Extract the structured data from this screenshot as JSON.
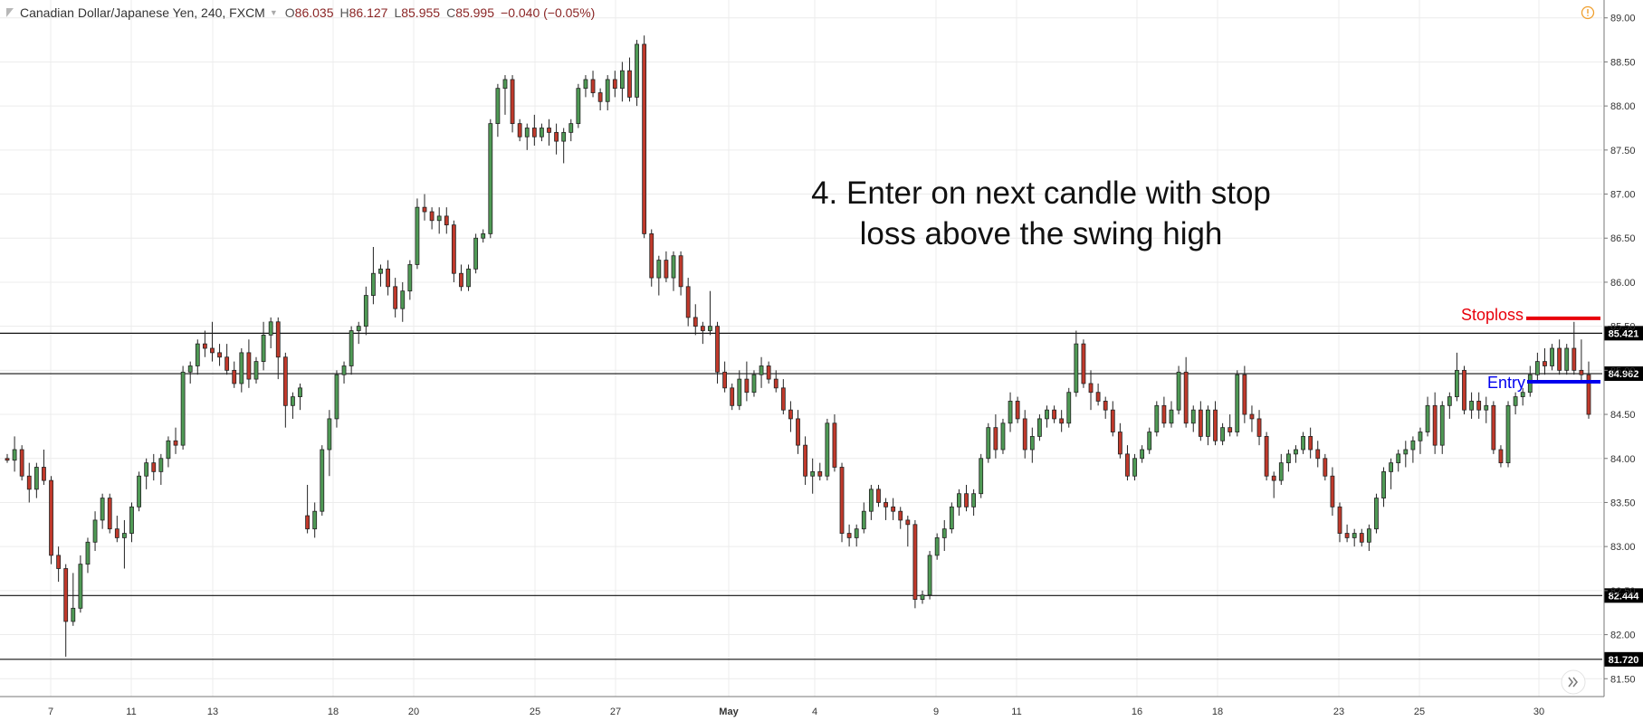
{
  "header": {
    "symbol": "Canadian Dollar/Japanese Yen, 240, FXCM",
    "open_label": "O",
    "open": "86.035",
    "high_label": "H",
    "high": "86.127",
    "low_label": "L",
    "low": "85.955",
    "close_label": "C",
    "close": "85.995",
    "change": "−0.040 (−0.05%)"
  },
  "icons": {
    "logo": "tradingview-logo-icon",
    "dropdown": "chevron-down-icon",
    "info": "alert-info-icon",
    "scroll": "double-chevron-right-icon"
  },
  "colors": {
    "up": "#4f9a55",
    "down": "#c0392b",
    "stoploss": "#e8000b",
    "entry": "#0000ee",
    "text": "#333333"
  },
  "chart_data": {
    "type": "candlestick",
    "ylim": [
      81.4,
      89.1
    ],
    "y_ticks": [
      "81.50",
      "82.00",
      "82.50",
      "83.00",
      "83.50",
      "84.00",
      "84.50",
      "85.00",
      "85.50",
      "86.00",
      "86.50",
      "87.00",
      "87.50",
      "88.00",
      "88.50",
      "89.00"
    ],
    "x_ticks": [
      "7",
      "11",
      "13",
      "18",
      "20",
      "25",
      "27",
      "May",
      "4",
      "9",
      "11",
      "16",
      "18",
      "23",
      "25",
      "30"
    ],
    "levels": [
      {
        "value": 85.421,
        "label": "85.421"
      },
      {
        "value": 84.962,
        "label": "84.962"
      },
      {
        "value": 82.444,
        "label": "82.444"
      },
      {
        "value": 81.72,
        "label": "81.720"
      }
    ],
    "annotation": {
      "line1": "4. Enter on next candle with stop",
      "line2": "loss above the swing high"
    },
    "stoploss": {
      "label": "Stoploss",
      "value": 85.59
    },
    "entry": {
      "label": "Entry",
      "value": 84.87
    },
    "candles": [
      [
        84.0,
        84.05,
        83.95,
        83.98
      ],
      [
        83.98,
        84.25,
        83.85,
        84.1
      ],
      [
        84.1,
        84.15,
        83.75,
        83.8
      ],
      [
        83.8,
        83.95,
        83.5,
        83.65
      ],
      [
        83.65,
        83.95,
        83.55,
        83.9
      ],
      [
        83.9,
        84.1,
        83.7,
        83.75
      ],
      [
        83.75,
        83.8,
        82.8,
        82.9
      ],
      [
        82.9,
        83.0,
        82.6,
        82.75
      ],
      [
        82.75,
        82.8,
        81.75,
        82.15
      ],
      [
        82.15,
        82.7,
        82.1,
        82.3
      ],
      [
        82.3,
        82.9,
        82.25,
        82.8
      ],
      [
        82.8,
        83.1,
        82.7,
        83.05
      ],
      [
        83.05,
        83.4,
        82.95,
        83.3
      ],
      [
        83.3,
        83.6,
        83.2,
        83.55
      ],
      [
        83.55,
        83.6,
        83.15,
        83.2
      ],
      [
        83.2,
        83.35,
        83.05,
        83.1
      ],
      [
        83.1,
        83.3,
        82.75,
        83.15
      ],
      [
        83.15,
        83.5,
        83.05,
        83.45
      ],
      [
        83.45,
        83.85,
        83.4,
        83.8
      ],
      [
        83.8,
        84.0,
        83.65,
        83.95
      ],
      [
        83.95,
        84.05,
        83.75,
        83.85
      ],
      [
        83.85,
        84.05,
        83.7,
        84.0
      ],
      [
        84.0,
        84.25,
        83.9,
        84.2
      ],
      [
        84.2,
        84.35,
        84.05,
        84.15
      ],
      [
        84.15,
        85.05,
        84.1,
        84.98
      ],
      [
        84.98,
        85.1,
        84.85,
        85.05
      ],
      [
        85.05,
        85.35,
        84.95,
        85.3
      ],
      [
        85.3,
        85.45,
        85.15,
        85.25
      ],
      [
        85.25,
        85.55,
        85.1,
        85.2
      ],
      [
        85.2,
        85.3,
        85.05,
        85.15
      ],
      [
        85.15,
        85.3,
        84.95,
        85.0
      ],
      [
        85.0,
        85.1,
        84.8,
        84.85
      ],
      [
        84.85,
        85.25,
        84.75,
        85.2
      ],
      [
        85.2,
        85.35,
        84.8,
        84.9
      ],
      [
        84.9,
        85.15,
        84.85,
        85.1
      ],
      [
        85.1,
        85.55,
        85.0,
        85.4
      ],
      [
        85.4,
        85.6,
        85.25,
        85.55
      ],
      [
        85.55,
        85.6,
        84.9,
        85.15
      ],
      [
        85.15,
        85.2,
        84.35,
        84.6
      ],
      [
        84.6,
        84.75,
        84.45,
        84.7
      ],
      [
        84.7,
        84.85,
        84.55,
        84.8
      ],
      [
        83.35,
        83.7,
        83.15,
        83.2
      ],
      [
        83.2,
        83.5,
        83.1,
        83.4
      ],
      [
        83.4,
        84.15,
        83.35,
        84.1
      ],
      [
        84.1,
        84.55,
        83.8,
        84.45
      ],
      [
        84.45,
        85.0,
        84.35,
        84.95
      ],
      [
        84.95,
        85.1,
        84.85,
        85.05
      ],
      [
        85.05,
        85.5,
        84.95,
        85.45
      ],
      [
        85.45,
        85.55,
        85.3,
        85.5
      ],
      [
        85.5,
        85.95,
        85.4,
        85.85
      ],
      [
        85.85,
        86.4,
        85.75,
        86.1
      ],
      [
        86.1,
        86.2,
        85.95,
        86.15
      ],
      [
        86.15,
        86.25,
        85.85,
        85.95
      ],
      [
        85.95,
        86.05,
        85.6,
        85.7
      ],
      [
        85.7,
        86.0,
        85.55,
        85.9
      ],
      [
        85.9,
        86.25,
        85.8,
        86.2
      ],
      [
        86.2,
        86.95,
        86.15,
        86.85
      ],
      [
        86.85,
        87.0,
        86.7,
        86.8
      ],
      [
        86.8,
        86.85,
        86.6,
        86.7
      ],
      [
        86.7,
        86.85,
        86.55,
        86.75
      ],
      [
        86.75,
        86.85,
        86.55,
        86.65
      ],
      [
        86.65,
        86.7,
        86.0,
        86.1
      ],
      [
        86.1,
        86.2,
        85.9,
        85.95
      ],
      [
        85.95,
        86.2,
        85.9,
        86.15
      ],
      [
        86.15,
        86.55,
        86.1,
        86.5
      ],
      [
        86.5,
        86.6,
        86.45,
        86.55
      ],
      [
        86.55,
        87.85,
        86.5,
        87.8
      ],
      [
        87.8,
        88.25,
        87.65,
        88.2
      ],
      [
        88.2,
        88.35,
        87.9,
        88.3
      ],
      [
        88.3,
        88.35,
        87.7,
        87.8
      ],
      [
        87.8,
        87.85,
        87.6,
        87.65
      ],
      [
        87.65,
        87.8,
        87.5,
        87.75
      ],
      [
        87.75,
        87.9,
        87.55,
        87.65
      ],
      [
        87.65,
        87.8,
        87.6,
        87.75
      ],
      [
        87.75,
        87.85,
        87.55,
        87.7
      ],
      [
        87.7,
        87.8,
        87.45,
        87.6
      ],
      [
        87.6,
        87.75,
        87.35,
        87.7
      ],
      [
        87.7,
        87.85,
        87.6,
        87.8
      ],
      [
        87.8,
        88.25,
        87.75,
        88.2
      ],
      [
        88.2,
        88.35,
        88.1,
        88.3
      ],
      [
        88.3,
        88.4,
        88.1,
        88.15
      ],
      [
        88.15,
        88.2,
        87.95,
        88.05
      ],
      [
        88.05,
        88.35,
        87.95,
        88.3
      ],
      [
        88.3,
        88.4,
        88.1,
        88.2
      ],
      [
        88.2,
        88.5,
        88.05,
        88.4
      ],
      [
        88.4,
        88.55,
        88.05,
        88.1
      ],
      [
        88.1,
        88.75,
        88.0,
        88.7
      ],
      [
        88.7,
        88.8,
        86.5,
        86.55
      ],
      [
        86.55,
        86.6,
        85.95,
        86.05
      ],
      [
        86.05,
        86.3,
        85.85,
        86.25
      ],
      [
        86.25,
        86.35,
        86.0,
        86.05
      ],
      [
        86.05,
        86.35,
        85.9,
        86.3
      ],
      [
        86.3,
        86.35,
        85.85,
        85.95
      ],
      [
        85.95,
        86.05,
        85.5,
        85.6
      ],
      [
        85.6,
        85.75,
        85.4,
        85.5
      ],
      [
        85.5,
        85.55,
        85.3,
        85.45
      ],
      [
        85.45,
        85.9,
        85.4,
        85.5
      ],
      [
        85.5,
        85.55,
        84.85,
        84.98
      ],
      [
        84.98,
        85.1,
        84.75,
        84.8
      ],
      [
        84.8,
        84.85,
        84.55,
        84.6
      ],
      [
        84.6,
        85.0,
        84.55,
        84.9
      ],
      [
        84.9,
        85.1,
        84.65,
        84.75
      ],
      [
        84.75,
        85.0,
        84.7,
        84.95
      ],
      [
        84.95,
        85.15,
        84.8,
        85.05
      ],
      [
        85.05,
        85.1,
        84.85,
        84.9
      ],
      [
        84.9,
        85.0,
        84.75,
        84.8
      ],
      [
        84.8,
        84.9,
        84.5,
        84.55
      ],
      [
        84.55,
        84.65,
        84.3,
        84.45
      ],
      [
        84.45,
        84.55,
        84.05,
        84.15
      ],
      [
        84.15,
        84.25,
        83.7,
        83.8
      ],
      [
        83.8,
        84.0,
        83.6,
        83.85
      ],
      [
        83.85,
        83.95,
        83.75,
        83.8
      ],
      [
        83.8,
        84.45,
        83.75,
        84.4
      ],
      [
        84.4,
        84.5,
        83.85,
        83.9
      ],
      [
        83.9,
        83.95,
        83.05,
        83.15
      ],
      [
        83.15,
        83.25,
        83.0,
        83.1
      ],
      [
        83.1,
        83.25,
        83.0,
        83.2
      ],
      [
        83.2,
        83.5,
        83.15,
        83.4
      ],
      [
        83.4,
        83.7,
        83.3,
        83.65
      ],
      [
        83.65,
        83.7,
        83.45,
        83.5
      ],
      [
        83.5,
        83.55,
        83.3,
        83.45
      ],
      [
        83.45,
        83.55,
        83.3,
        83.4
      ],
      [
        83.4,
        83.45,
        83.2,
        83.3
      ],
      [
        83.3,
        83.35,
        83.0,
        83.25
      ],
      [
        83.25,
        83.3,
        82.3,
        82.4
      ],
      [
        82.4,
        82.5,
        82.35,
        82.45
      ],
      [
        82.45,
        82.95,
        82.4,
        82.9
      ],
      [
        82.9,
        83.15,
        82.85,
        83.1
      ],
      [
        83.1,
        83.3,
        82.95,
        83.2
      ],
      [
        83.2,
        83.5,
        83.15,
        83.45
      ],
      [
        83.45,
        83.65,
        83.35,
        83.6
      ],
      [
        83.6,
        83.7,
        83.4,
        83.45
      ],
      [
        83.45,
        83.65,
        83.35,
        83.6
      ],
      [
        83.6,
        84.05,
        83.55,
        84.0
      ],
      [
        84.0,
        84.4,
        83.95,
        84.35
      ],
      [
        84.35,
        84.5,
        84.0,
        84.1
      ],
      [
        84.1,
        84.45,
        84.05,
        84.4
      ],
      [
        84.4,
        84.75,
        84.3,
        84.65
      ],
      [
        84.65,
        84.7,
        84.4,
        84.45
      ],
      [
        84.45,
        84.55,
        84.0,
        84.1
      ],
      [
        84.1,
        84.35,
        83.95,
        84.25
      ],
      [
        84.25,
        84.5,
        84.2,
        84.45
      ],
      [
        84.45,
        84.6,
        84.35,
        84.55
      ],
      [
        84.55,
        84.6,
        84.4,
        84.45
      ],
      [
        84.45,
        84.55,
        84.3,
        84.4
      ],
      [
        84.4,
        84.8,
        84.35,
        84.75
      ],
      [
        84.75,
        85.45,
        84.7,
        85.3
      ],
      [
        85.3,
        85.35,
        84.8,
        84.85
      ],
      [
        84.85,
        85.0,
        84.55,
        84.75
      ],
      [
        84.75,
        84.85,
        84.6,
        84.65
      ],
      [
        84.65,
        84.7,
        84.45,
        84.55
      ],
      [
        84.55,
        84.65,
        84.25,
        84.3
      ],
      [
        84.3,
        84.4,
        84.0,
        84.05
      ],
      [
        84.05,
        84.15,
        83.75,
        83.8
      ],
      [
        83.8,
        84.05,
        83.75,
        84.0
      ],
      [
        84.0,
        84.15,
        83.95,
        84.1
      ],
      [
        84.1,
        84.35,
        84.05,
        84.3
      ],
      [
        84.3,
        84.65,
        84.25,
        84.6
      ],
      [
        84.6,
        84.7,
        84.35,
        84.4
      ],
      [
        84.4,
        84.65,
        84.35,
        84.55
      ],
      [
        84.55,
        85.05,
        84.5,
        84.98
      ],
      [
        84.98,
        85.15,
        84.35,
        84.4
      ],
      [
        84.4,
        84.6,
        84.3,
        84.55
      ],
      [
        84.55,
        84.65,
        84.2,
        84.25
      ],
      [
        84.25,
        84.6,
        84.15,
        84.55
      ],
      [
        84.55,
        84.65,
        84.15,
        84.2
      ],
      [
        84.2,
        84.4,
        84.15,
        84.35
      ],
      [
        84.35,
        84.5,
        84.25,
        84.3
      ],
      [
        84.3,
        85.0,
        84.25,
        84.95
      ],
      [
        84.95,
        85.05,
        84.4,
        84.5
      ],
      [
        84.5,
        84.6,
        84.3,
        84.45
      ],
      [
        84.45,
        84.55,
        84.15,
        84.25
      ],
      [
        84.25,
        84.3,
        83.75,
        83.8
      ],
      [
        83.8,
        83.85,
        83.55,
        83.75
      ],
      [
        83.75,
        84.05,
        83.7,
        83.95
      ],
      [
        83.95,
        84.1,
        83.85,
        84.05
      ],
      [
        84.05,
        84.15,
        83.95,
        84.1
      ],
      [
        84.1,
        84.3,
        84.05,
        84.25
      ],
      [
        84.25,
        84.35,
        84.0,
        84.1
      ],
      [
        84.1,
        84.2,
        83.9,
        84.0
      ],
      [
        84.0,
        84.05,
        83.75,
        83.8
      ],
      [
        83.8,
        83.9,
        83.35,
        83.45
      ],
      [
        83.45,
        83.5,
        83.05,
        83.15
      ],
      [
        83.15,
        83.25,
        83.05,
        83.1
      ],
      [
        83.1,
        83.2,
        83.0,
        83.15
      ],
      [
        83.15,
        83.2,
        83.0,
        83.05
      ],
      [
        83.05,
        83.25,
        82.95,
        83.2
      ],
      [
        83.2,
        83.6,
        83.15,
        83.55
      ],
      [
        83.55,
        83.9,
        83.45,
        83.85
      ],
      [
        83.85,
        84.0,
        83.65,
        83.95
      ],
      [
        83.95,
        84.1,
        83.85,
        84.05
      ],
      [
        84.05,
        84.2,
        83.9,
        84.1
      ],
      [
        84.1,
        84.25,
        83.95,
        84.2
      ],
      [
        84.2,
        84.35,
        84.05,
        84.3
      ],
      [
        84.3,
        84.7,
        84.25,
        84.6
      ],
      [
        84.6,
        84.75,
        84.05,
        84.15
      ],
      [
        84.15,
        84.65,
        84.05,
        84.6
      ],
      [
        84.6,
        84.75,
        84.45,
        84.7
      ],
      [
        84.7,
        85.2,
        84.65,
        85.0
      ],
      [
        85.0,
        85.05,
        84.5,
        84.55
      ],
      [
        84.55,
        84.75,
        84.45,
        84.65
      ],
      [
        84.65,
        84.75,
        84.45,
        84.55
      ],
      [
        84.55,
        84.7,
        84.4,
        84.6
      ],
      [
        84.6,
        84.65,
        84.05,
        84.1
      ],
      [
        84.1,
        84.15,
        83.9,
        83.95
      ],
      [
        83.95,
        84.65,
        83.9,
        84.6
      ],
      [
        84.6,
        84.75,
        84.5,
        84.7
      ],
      [
        84.7,
        84.8,
        84.6,
        84.75
      ],
      [
        84.75,
        85.05,
        84.7,
        84.95
      ],
      [
        84.95,
        85.2,
        84.85,
        85.1
      ],
      [
        85.1,
        85.25,
        84.95,
        85.05
      ],
      [
        85.05,
        85.3,
        85.0,
        85.25
      ],
      [
        85.25,
        85.35,
        84.95,
        85.0
      ],
      [
        85.0,
        85.3,
        84.95,
        85.25
      ],
      [
        85.25,
        85.55,
        84.95,
        85.0
      ],
      [
        85.0,
        85.35,
        84.85,
        84.95
      ],
      [
        84.95,
        85.1,
        84.45,
        84.5
      ]
    ]
  }
}
